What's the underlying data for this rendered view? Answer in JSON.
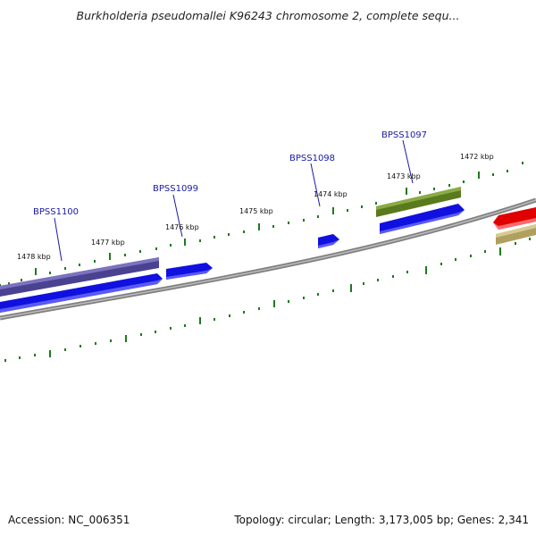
{
  "title": "Burkholderia pseudomallei K96243 chromosome 2, complete sequ...",
  "footer": {
    "accession": "Accession: NC_006351",
    "summary": "Topology: circular; Length: 3,173,005 bp; Genes: 2,341"
  },
  "ticks": [
    "1478 kbp",
    "1477 kbp",
    "1476 kbp",
    "1475 kbp",
    "1474 kbp",
    "1473 kbp",
    "1472 kbp"
  ],
  "genes": [
    "BPSS1100",
    "BPSS1099",
    "BPSS1098",
    "BPSS1097"
  ],
  "colors": {
    "backbone": "#808080",
    "tick": "#1e7a1e",
    "gene_label": "#1a1aa6",
    "cds_blue": "#1010e0",
    "feature_purple": "#4a4290",
    "feature_olive": "#5a7a1e",
    "feature_red": "#e00000",
    "feature_tan": "#b0a060"
  }
}
